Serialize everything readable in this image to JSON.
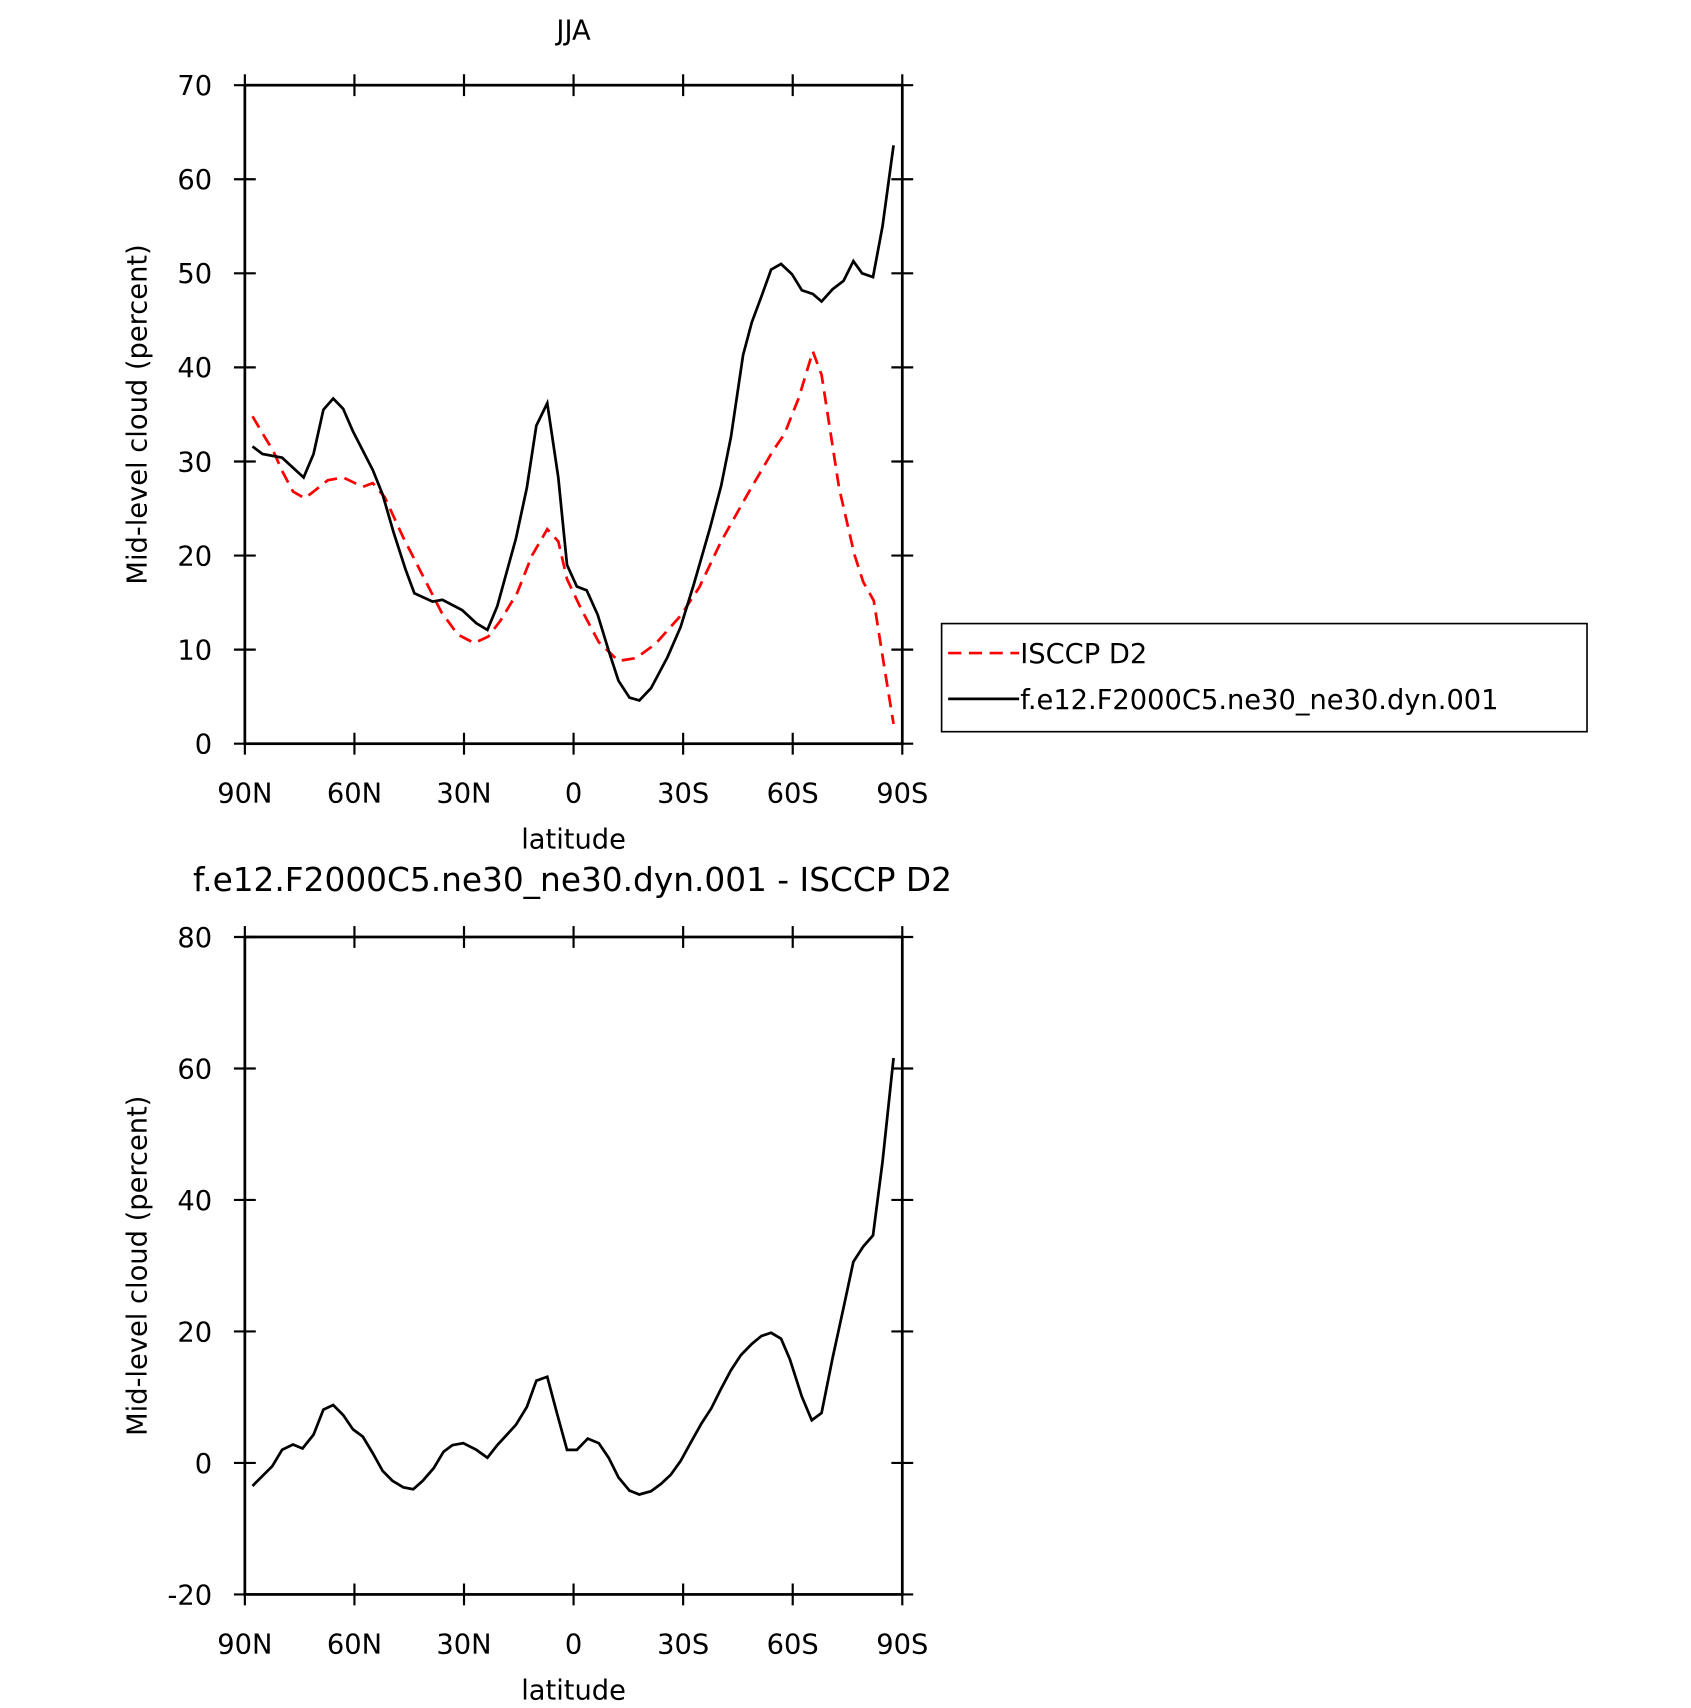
{
  "chart_data": [
    {
      "type": "line",
      "title": "JJA",
      "xlabel": "latitude",
      "ylabel": "Mid-level cloud (percent)",
      "xlim": [
        90,
        -90
      ],
      "ylim": [
        0,
        70
      ],
      "xticks": [
        {
          "value": 90,
          "label": "90N"
        },
        {
          "value": 60,
          "label": "60N"
        },
        {
          "value": 30,
          "label": "30N"
        },
        0,
        {
          "value": -30,
          "label": "30S"
        },
        {
          "value": -60,
          "label": "60S"
        },
        {
          "value": -90,
          "label": "90S"
        }
      ],
      "yticks": [
        0,
        10,
        20,
        30,
        40,
        50,
        60,
        70
      ],
      "legend": "right",
      "series": [
        {
          "name": "ISCCP D2",
          "color": "#ff0000",
          "dash": true,
          "x": [
            87.9,
            85.2,
            82.2,
            79.8,
            76.8,
            73.6,
            71.2,
            67.3,
            63.1,
            57.7,
            55.0,
            51.7,
            46.6,
            41.6,
            36.2,
            31.7,
            27.2,
            23.3,
            20.0,
            15.5,
            11.4,
            7.2,
            4.2,
            1.8,
            -2.1,
            -6.9,
            -12.3,
            -17.1,
            -22.4,
            -29.3,
            -34.4,
            -40.4,
            -47.9,
            -54.7,
            -57.7,
            -61.6,
            -65.5,
            -67.9,
            -72.7,
            -76.9,
            -79.3,
            -82.2,
            -84.9,
            -87.6
          ],
          "values": [
            34.8,
            33.0,
            31.1,
            29.0,
            26.8,
            26.1,
            26.8,
            28.0,
            28.3,
            27.3,
            27.7,
            26.2,
            21.9,
            18.1,
            14.0,
            11.6,
            10.7,
            11.4,
            13.1,
            16.0,
            20.0,
            22.8,
            21.5,
            17.5,
            14.3,
            10.8,
            8.8,
            9.1,
            10.6,
            13.6,
            16.6,
            21.5,
            26.7,
            31.2,
            32.9,
            36.7,
            41.7,
            39.2,
            27.2,
            20.1,
            17.2,
            15.2,
            8.6,
            2.1
          ]
        },
        {
          "name": "f.e12.F2000C5.ne30_ne30.dyn.001",
          "color": "#000000",
          "dash": false,
          "x": [
            87.9,
            85.2,
            79.8,
            73.9,
            71.2,
            68.5,
            65.8,
            63.1,
            60.4,
            55.0,
            52.3,
            49.3,
            46.0,
            43.6,
            38.6,
            35.9,
            30.5,
            26.6,
            23.6,
            20.9,
            15.8,
            12.8,
            10.2,
            7.2,
            4.2,
            1.8,
            -0.9,
            -3.6,
            -6.6,
            -9.6,
            -12.3,
            -15.3,
            -18.0,
            -21.2,
            -25.7,
            -29.3,
            -32.9,
            -37.4,
            -40.4,
            -43.1,
            -46.4,
            -48.8,
            -51.4,
            -54.1,
            -56.8,
            -59.8,
            -62.5,
            -65.5,
            -67.9,
            -70.9,
            -73.9,
            -76.6,
            -79.0,
            -82.0,
            -84.6,
            -87.6
          ],
          "values": [
            31.6,
            30.8,
            30.4,
            28.3,
            30.8,
            35.5,
            36.7,
            35.6,
            33.2,
            29.1,
            26.5,
            22.5,
            18.5,
            16.0,
            15.1,
            15.3,
            14.2,
            12.8,
            12.1,
            14.6,
            21.8,
            27.2,
            33.8,
            36.2,
            28.3,
            19.0,
            16.7,
            16.3,
            13.7,
            9.9,
            6.7,
            4.9,
            4.6,
            5.9,
            9.2,
            12.4,
            16.9,
            23.0,
            27.4,
            32.6,
            41.3,
            44.8,
            47.5,
            50.4,
            51.0,
            49.9,
            48.2,
            47.8,
            47.0,
            48.3,
            49.2,
            51.3,
            50.0,
            49.6,
            55.0,
            63.6
          ]
        }
      ]
    },
    {
      "type": "line",
      "title": "f.e12.F2000C5.ne30_ne30.dyn.001 - ISCCP D2",
      "xlabel": "latitude",
      "ylabel": "Mid-level cloud (percent)",
      "xlim": [
        90,
        -90
      ],
      "ylim": [
        -20,
        80
      ],
      "xticks": [
        {
          "value": 90,
          "label": "90N"
        },
        {
          "value": 60,
          "label": "60N"
        },
        {
          "value": 30,
          "label": "30N"
        },
        0,
        {
          "value": -30,
          "label": "30S"
        },
        {
          "value": -60,
          "label": "60S"
        },
        {
          "value": -90,
          "label": "90S"
        }
      ],
      "yticks": [
        -20,
        0,
        20,
        40,
        60,
        80
      ],
      "series": [
        {
          "color": "#000000",
          "dash": false,
          "x": [
            87.9,
            82.5,
            79.8,
            76.8,
            74.2,
            71.2,
            68.5,
            65.8,
            63.1,
            60.4,
            57.7,
            55.0,
            52.3,
            49.6,
            46.6,
            43.9,
            41.3,
            38.3,
            35.6,
            33.2,
            30.2,
            26.6,
            23.6,
            20.9,
            17.9,
            15.8,
            12.8,
            10.2,
            7.2,
            4.5,
            1.8,
            -0.9,
            -3.9,
            -6.9,
            -9.6,
            -12.3,
            -15.3,
            -18.0,
            -21.2,
            -23.9,
            -26.6,
            -29.3,
            -32.3,
            -35.0,
            -37.7,
            -40.4,
            -43.1,
            -45.8,
            -48.8,
            -51.4,
            -54.1,
            -56.8,
            -59.2,
            -62.5,
            -65.2,
            -67.9,
            -70.9,
            -73.9,
            -76.6,
            -79.3,
            -82.0,
            -84.6,
            -87.6
          ],
          "values": [
            -3.5,
            -0.5,
            2.0,
            2.8,
            2.2,
            4.3,
            8.1,
            8.8,
            7.3,
            5.1,
            4.0,
            1.5,
            -1.2,
            -2.7,
            -3.7,
            -4.0,
            -2.7,
            -0.8,
            1.7,
            2.7,
            3.0,
            2.0,
            0.8,
            2.7,
            4.5,
            5.8,
            8.5,
            12.5,
            13.1,
            7.5,
            2.0,
            2.0,
            3.7,
            3.0,
            0.8,
            -2.2,
            -4.2,
            -4.8,
            -4.3,
            -3.2,
            -1.8,
            0.3,
            3.3,
            6.0,
            8.3,
            11.3,
            14.1,
            16.4,
            18.1,
            19.3,
            19.8,
            18.9,
            15.8,
            10.1,
            6.5,
            7.6,
            15.9,
            23.6,
            30.6,
            32.9,
            34.6,
            45.8,
            61.6
          ]
        }
      ]
    }
  ]
}
